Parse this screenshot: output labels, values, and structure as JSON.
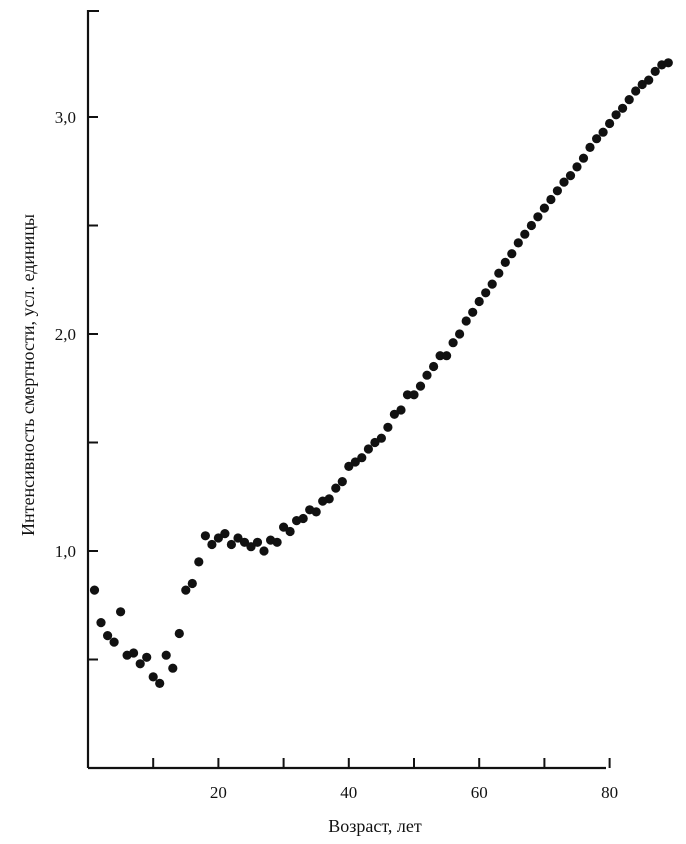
{
  "chart_data": {
    "type": "scatter",
    "title": "",
    "xlabel": "Возраст, лет",
    "ylabel": "Интенсивность смертности, усл. единицы",
    "xlim": [
      0,
      90
    ],
    "ylim": [
      0.0,
      3.5
    ],
    "x_ticks": [
      10,
      20,
      30,
      40,
      50,
      60,
      70,
      80
    ],
    "x_tick_labels": [
      "",
      "20",
      "",
      "40",
      "",
      "60",
      "",
      "80"
    ],
    "y_ticks": [
      0.5,
      1.0,
      1.5,
      2.0,
      2.5,
      3.0
    ],
    "y_tick_labels": [
      "",
      "1,0",
      "",
      "2,0",
      "",
      "3,0"
    ],
    "grid": false,
    "legend": "none",
    "point_color": "#111111",
    "series": [
      {
        "x": [
          1,
          2,
          3,
          4,
          5,
          6,
          7,
          8,
          9,
          10,
          11,
          12,
          13,
          14,
          15,
          16,
          17,
          18,
          19,
          20,
          21,
          22,
          23,
          24,
          25,
          26,
          27,
          28,
          29,
          30,
          31,
          32,
          33,
          34,
          35,
          36,
          37,
          38,
          39,
          40,
          41,
          42,
          43,
          44,
          45,
          46,
          47,
          48,
          49,
          50,
          51,
          52,
          53,
          54,
          55,
          56,
          57,
          58,
          59,
          60,
          61,
          62,
          63,
          64,
          65,
          66,
          67,
          68,
          69,
          70,
          71,
          72,
          73,
          74,
          75,
          76,
          77,
          78,
          79,
          80,
          81,
          82,
          83,
          84,
          85,
          86,
          87,
          88,
          89
        ],
        "y": [
          0.82,
          0.67,
          0.61,
          0.58,
          0.72,
          0.52,
          0.53,
          0.48,
          0.51,
          0.42,
          0.39,
          0.52,
          0.46,
          0.62,
          0.82,
          0.85,
          0.95,
          1.07,
          1.03,
          1.06,
          1.08,
          1.03,
          1.06,
          1.04,
          1.02,
          1.04,
          1.0,
          1.05,
          1.04,
          1.11,
          1.09,
          1.14,
          1.15,
          1.19,
          1.18,
          1.23,
          1.24,
          1.29,
          1.32,
          1.39,
          1.41,
          1.43,
          1.47,
          1.5,
          1.52,
          1.57,
          1.63,
          1.65,
          1.72,
          1.72,
          1.76,
          1.81,
          1.85,
          1.9,
          1.9,
          1.96,
          2.0,
          2.06,
          2.1,
          2.15,
          2.19,
          2.23,
          2.28,
          2.33,
          2.37,
          2.42,
          2.46,
          2.5,
          2.54,
          2.58,
          2.62,
          2.66,
          2.7,
          2.73,
          2.77,
          2.81,
          2.86,
          2.9,
          2.93,
          2.97,
          3.01,
          3.04,
          3.08,
          3.12,
          3.15,
          3.17,
          3.21,
          3.24,
          3.25
        ]
      }
    ]
  }
}
